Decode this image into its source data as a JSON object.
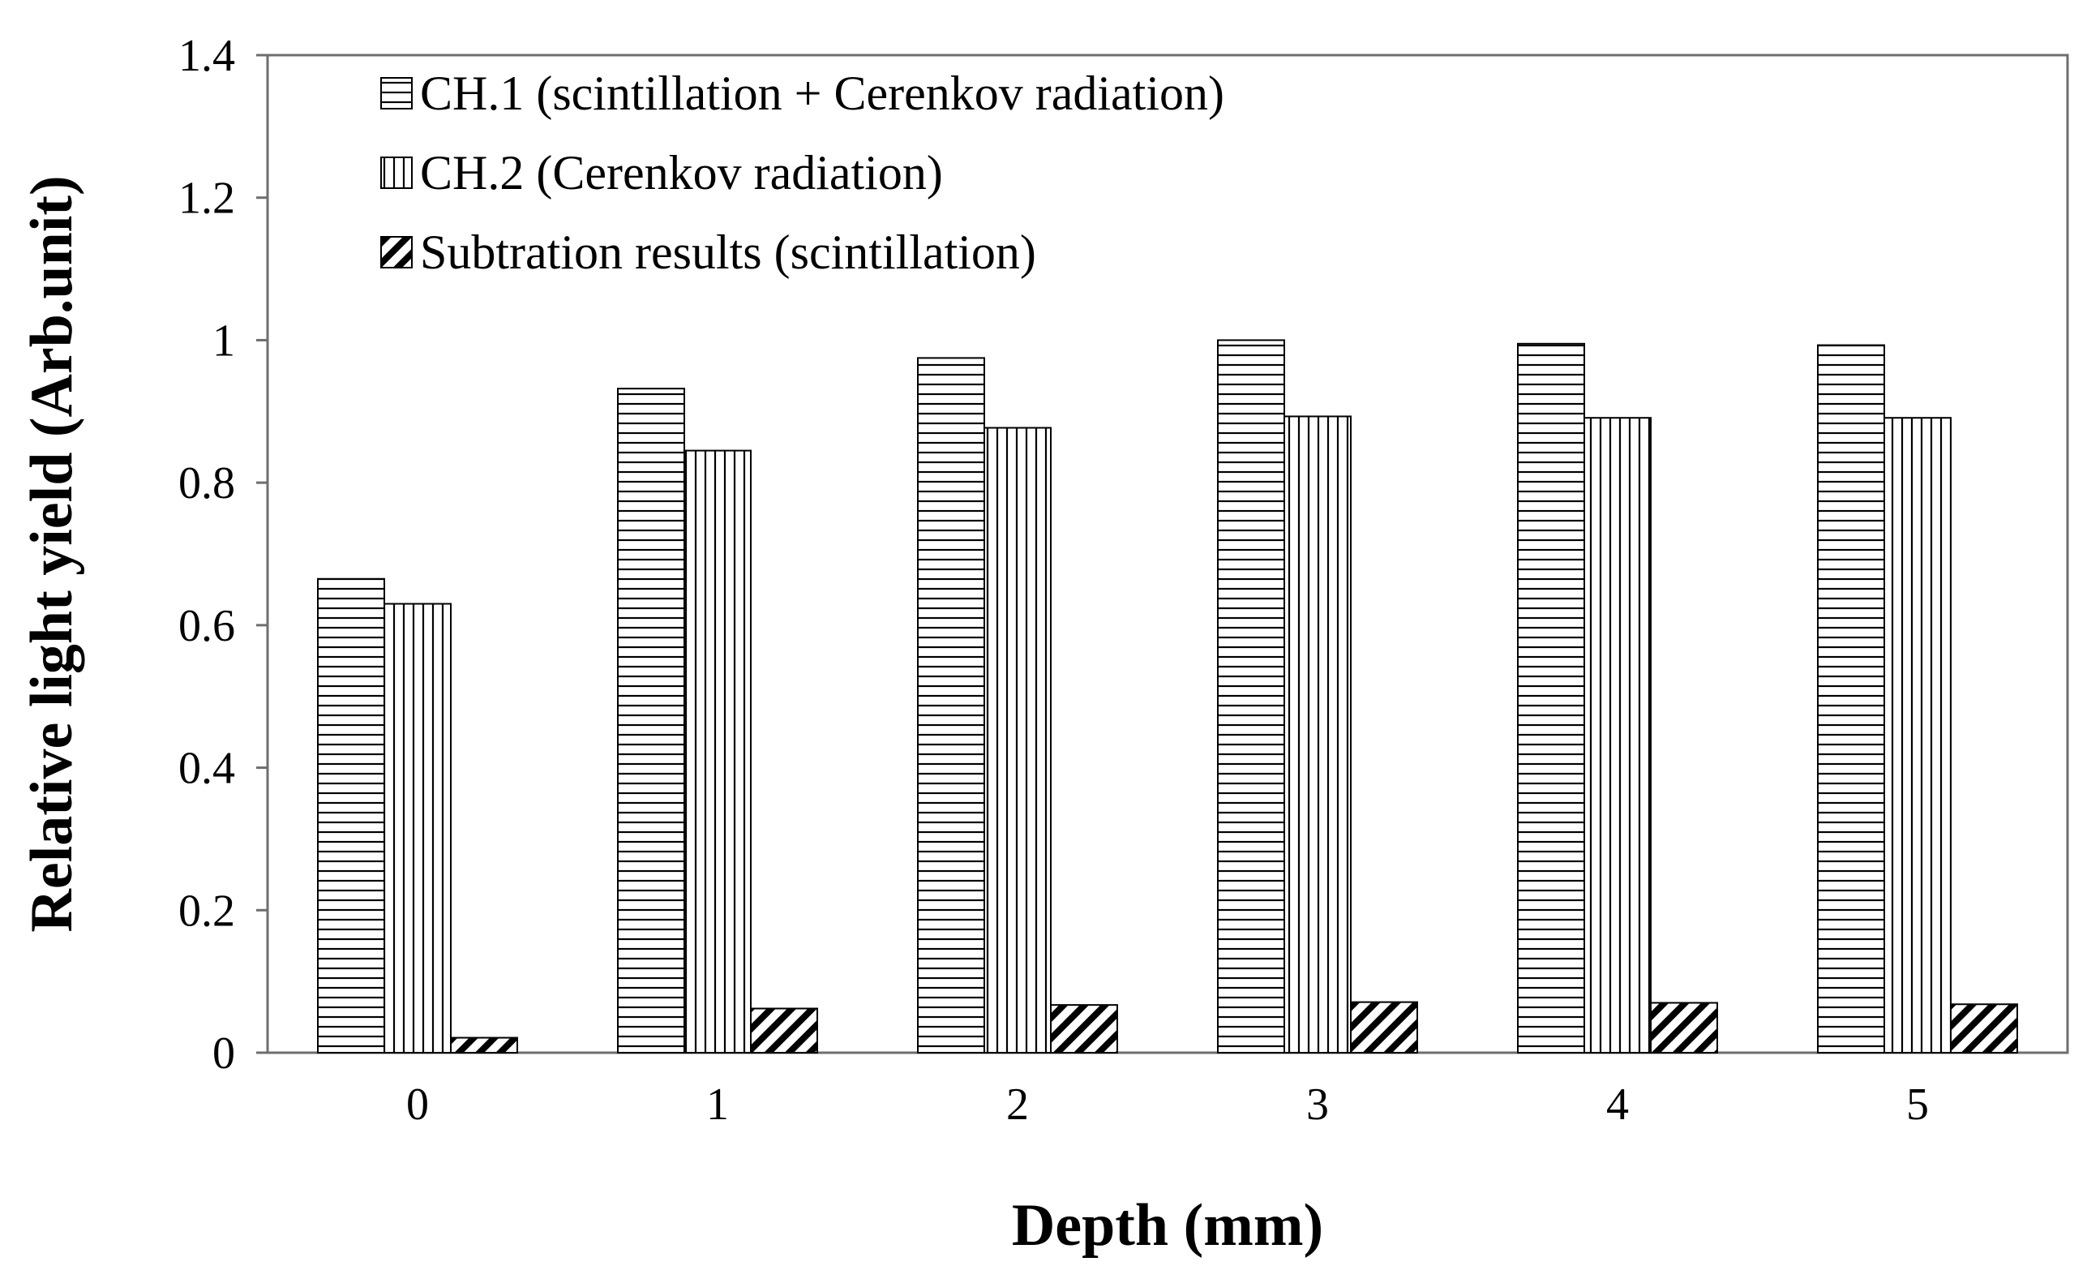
{
  "chart_data": {
    "type": "bar",
    "title": "",
    "xlabel": "Depth (mm)",
    "ylabel": "Relative light yield (Arb.unit)",
    "categories": [
      "0",
      "1",
      "2",
      "3",
      "4",
      "5"
    ],
    "ylim": [
      0,
      1.4
    ],
    "yticks": [
      "0",
      "0.2",
      "0.4",
      "0.6",
      "0.8",
      "1",
      "1.2",
      "1.4"
    ],
    "grid": false,
    "legend_position": "top-left",
    "series": [
      {
        "name": "CH.1 (scintillation + Cerenkov radiation)",
        "pattern": "horizontal-lines",
        "values": [
          0.665,
          0.932,
          0.975,
          1.0,
          0.995,
          0.993
        ]
      },
      {
        "name": "CH.2 (Cerenkov radiation)",
        "pattern": "vertical-lines",
        "values": [
          0.63,
          0.845,
          0.877,
          0.893,
          0.891,
          0.891
        ]
      },
      {
        "name": "Subtration results (scintillation)",
        "pattern": "diagonal-lines",
        "values": [
          0.021,
          0.062,
          0.067,
          0.071,
          0.07,
          0.068
        ]
      }
    ]
  }
}
